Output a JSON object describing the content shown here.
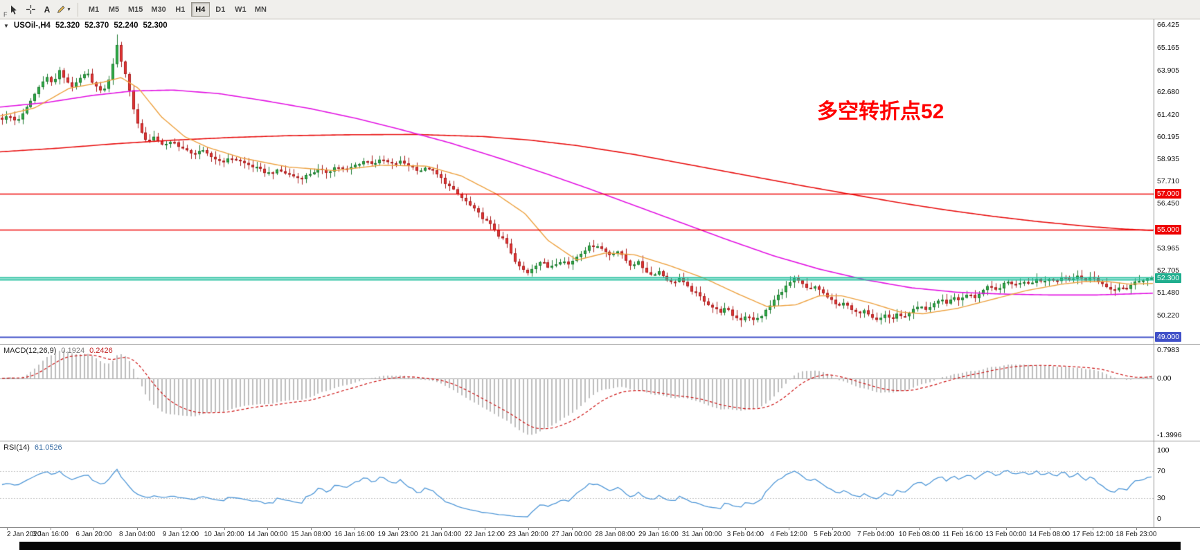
{
  "toolbar": {
    "text_tool_label": "A",
    "overflow_label": "F",
    "timeframes": [
      {
        "label": "M1",
        "active": false
      },
      {
        "label": "M5",
        "active": false
      },
      {
        "label": "M15",
        "active": false
      },
      {
        "label": "M30",
        "active": false
      },
      {
        "label": "H1",
        "active": false
      },
      {
        "label": "H4",
        "active": true
      },
      {
        "label": "D1",
        "active": false
      },
      {
        "label": "W1",
        "active": false
      },
      {
        "label": "MN",
        "active": false
      }
    ]
  },
  "chart_header": {
    "symbol_timeframe": "USOil-,H4",
    "open": "52.320",
    "high": "52.370",
    "low": "52.240",
    "close": "52.300"
  },
  "annotation": {
    "text": "多空转折点52",
    "color": "#ff0000"
  },
  "macd_panel": {
    "label": "MACD(12,26,9)",
    "value_main": "0.1924",
    "value_signal": "0.2426",
    "axis_labels": [
      "0.7983",
      "0.00",
      "-1.3996"
    ],
    "histogram_color": "#bdbdbd",
    "signal_color": "#cc1111",
    "zero_line_color": "#a8a8a8"
  },
  "rsi_panel": {
    "label": "RSI(14)",
    "value": "61.0526",
    "period": 14,
    "axis_labels": [
      {
        "v": 100,
        "t": "100"
      },
      {
        "v": 70,
        "t": "70"
      },
      {
        "v": 30,
        "t": "30"
      },
      {
        "v": 0,
        "t": "0"
      }
    ],
    "levels": [
      70,
      30
    ],
    "level_color": "#c0c0c0",
    "line_color": "#4f97d7",
    "range": [
      -12,
      113
    ]
  },
  "time_axis": {
    "labels": [
      "2 Jan 2020",
      "3 Jan 16:00",
      "6 Jan 20:00",
      "8 Jan 04:00",
      "9 Jan 12:00",
      "10 Jan 20:00",
      "14 Jan 00:00",
      "15 Jan 08:00",
      "16 Jan 16:00",
      "19 Jan 23:00",
      "21 Jan 04:00",
      "22 Jan 12:00",
      "23 Jan 20:00",
      "27 Jan 00:00",
      "28 Jan 08:00",
      "29 Jan 16:00",
      "31 Jan 00:00",
      "3 Feb 04:00",
      "4 Feb 12:00",
      "5 Feb 20:00",
      "7 Feb 04:00",
      "10 Feb 08:00",
      "11 Feb 16:00",
      "13 Feb 00:00",
      "14 Feb 08:00",
      "17 Feb 12:00",
      "18 Feb 23:00"
    ]
  },
  "bottom_bar": {
    "color": "#060606"
  },
  "chart_data": {
    "type": "candlestick",
    "symbol": "USOil-",
    "timeframe": "H4",
    "ohlc_display": {
      "open": 52.32,
      "high": 52.37,
      "low": 52.24,
      "close": 52.3
    },
    "num_candles": 281,
    "wiggle": 0.16,
    "price_range": [
      48.62,
      66.75
    ],
    "y_axis_ticks": [
      "66.425",
      "65.165",
      "63.905",
      "62.680",
      "61.420",
      "60.195",
      "58.935",
      "57.710",
      "56.450",
      "53.965",
      "52.705",
      "51.480",
      "50.220"
    ],
    "candle_colors": {
      "up_fill": "#2fae47",
      "up_border": "#1d7a30",
      "down_fill": "#e53535",
      "down_border": "#a81d1d"
    },
    "close_waypoints": [
      [
        0,
        61.2
      ],
      [
        0.006,
        61.35
      ],
      [
        0.012,
        61.05
      ],
      [
        0.018,
        61.45
      ],
      [
        0.026,
        62.3
      ],
      [
        0.032,
        62.95
      ],
      [
        0.038,
        63.6
      ],
      [
        0.044,
        63.15
      ],
      [
        0.05,
        63.85
      ],
      [
        0.056,
        63.3
      ],
      [
        0.062,
        62.95
      ],
      [
        0.068,
        63.45
      ],
      [
        0.074,
        63.75
      ],
      [
        0.08,
        63.15
      ],
      [
        0.086,
        62.7
      ],
      [
        0.092,
        63.1
      ],
      [
        0.096,
        64.2
      ],
      [
        0.1,
        65.25
      ],
      [
        0.104,
        64.35
      ],
      [
        0.108,
        63.55
      ],
      [
        0.112,
        62.4
      ],
      [
        0.116,
        61.25
      ],
      [
        0.121,
        60.45
      ],
      [
        0.127,
        59.9
      ],
      [
        0.133,
        60.15
      ],
      [
        0.141,
        59.7
      ],
      [
        0.149,
        59.9
      ],
      [
        0.157,
        59.55
      ],
      [
        0.165,
        59.2
      ],
      [
        0.173,
        59.45
      ],
      [
        0.181,
        59.1
      ],
      [
        0.191,
        58.8
      ],
      [
        0.201,
        59.0
      ],
      [
        0.211,
        58.7
      ],
      [
        0.221,
        58.45
      ],
      [
        0.231,
        58.15
      ],
      [
        0.241,
        58.3
      ],
      [
        0.251,
        58.05
      ],
      [
        0.259,
        57.85
      ],
      [
        0.267,
        58.1
      ],
      [
        0.275,
        58.35
      ],
      [
        0.283,
        58.2
      ],
      [
        0.291,
        58.55
      ],
      [
        0.299,
        58.3
      ],
      [
        0.307,
        58.6
      ],
      [
        0.315,
        58.85
      ],
      [
        0.323,
        58.7
      ],
      [
        0.331,
        58.9
      ],
      [
        0.339,
        58.65
      ],
      [
        0.347,
        58.8
      ],
      [
        0.355,
        58.55
      ],
      [
        0.363,
        58.3
      ],
      [
        0.371,
        58.45
      ],
      [
        0.379,
        58.05
      ],
      [
        0.387,
        57.55
      ],
      [
        0.395,
        57.05
      ],
      [
        0.403,
        56.6
      ],
      [
        0.411,
        56.1
      ],
      [
        0.419,
        55.6
      ],
      [
        0.427,
        55.15
      ],
      [
        0.433,
        54.6
      ],
      [
        0.439,
        54.25
      ],
      [
        0.445,
        53.3
      ],
      [
        0.451,
        52.85
      ],
      [
        0.457,
        52.6
      ],
      [
        0.463,
        53.0
      ],
      [
        0.469,
        53.25
      ],
      [
        0.475,
        52.9
      ],
      [
        0.481,
        53.1
      ],
      [
        0.487,
        53.3
      ],
      [
        0.493,
        53.05
      ],
      [
        0.499,
        53.45
      ],
      [
        0.505,
        53.8
      ],
      [
        0.511,
        54.05
      ],
      [
        0.517,
        54.15
      ],
      [
        0.523,
        53.85
      ],
      [
        0.529,
        53.6
      ],
      [
        0.535,
        53.85
      ],
      [
        0.541,
        53.4
      ],
      [
        0.547,
        53.0
      ],
      [
        0.553,
        53.2
      ],
      [
        0.559,
        52.75
      ],
      [
        0.565,
        52.45
      ],
      [
        0.571,
        52.7
      ],
      [
        0.577,
        52.3
      ],
      [
        0.583,
        52.0
      ],
      [
        0.589,
        52.3
      ],
      [
        0.595,
        51.85
      ],
      [
        0.601,
        51.55
      ],
      [
        0.608,
        51.2
      ],
      [
        0.616,
        50.75
      ],
      [
        0.624,
        50.4
      ],
      [
        0.63,
        50.6
      ],
      [
        0.636,
        50.2
      ],
      [
        0.642,
        49.95
      ],
      [
        0.648,
        50.25
      ],
      [
        0.654,
        49.9
      ],
      [
        0.66,
        50.15
      ],
      [
        0.666,
        50.6
      ],
      [
        0.672,
        51.1
      ],
      [
        0.678,
        51.55
      ],
      [
        0.684,
        51.95
      ],
      [
        0.69,
        52.25
      ],
      [
        0.696,
        51.95
      ],
      [
        0.702,
        51.6
      ],
      [
        0.708,
        51.85
      ],
      [
        0.714,
        51.45
      ],
      [
        0.72,
        51.1
      ],
      [
        0.726,
        50.75
      ],
      [
        0.732,
        50.95
      ],
      [
        0.738,
        50.55
      ],
      [
        0.744,
        50.3
      ],
      [
        0.75,
        50.55
      ],
      [
        0.756,
        50.2
      ],
      [
        0.762,
        49.95
      ],
      [
        0.768,
        50.25
      ],
      [
        0.774,
        50.0
      ],
      [
        0.78,
        50.3
      ],
      [
        0.786,
        50.1
      ],
      [
        0.792,
        50.45
      ],
      [
        0.798,
        50.7
      ],
      [
        0.804,
        50.5
      ],
      [
        0.81,
        50.85
      ],
      [
        0.816,
        51.1
      ],
      [
        0.822,
        50.9
      ],
      [
        0.828,
        51.25
      ],
      [
        0.834,
        51.05
      ],
      [
        0.84,
        51.4
      ],
      [
        0.846,
        51.2
      ],
      [
        0.852,
        51.55
      ],
      [
        0.858,
        51.8
      ],
      [
        0.864,
        51.6
      ],
      [
        0.87,
        51.9
      ],
      [
        0.876,
        52.1
      ],
      [
        0.882,
        51.9
      ],
      [
        0.888,
        52.15
      ],
      [
        0.894,
        52.0
      ],
      [
        0.9,
        52.25
      ],
      [
        0.906,
        52.1
      ],
      [
        0.912,
        52.3
      ],
      [
        0.918,
        52.15
      ],
      [
        0.924,
        52.35
      ],
      [
        0.93,
        52.2
      ],
      [
        0.936,
        52.4
      ],
      [
        0.942,
        52.2
      ],
      [
        0.948,
        52.35
      ],
      [
        0.954,
        52.1
      ],
      [
        0.96,
        51.85
      ],
      [
        0.966,
        51.6
      ],
      [
        0.972,
        51.85
      ],
      [
        0.978,
        51.7
      ],
      [
        0.984,
        52.0
      ],
      [
        0.99,
        52.2
      ],
      [
        1,
        52.3
      ]
    ],
    "moving_averages": [
      {
        "name": "slow-ma",
        "color": "#e81010",
        "width": 1.6,
        "waypoints": [
          [
            0,
            59.35
          ],
          [
            0.05,
            59.55
          ],
          [
            0.1,
            59.8
          ],
          [
            0.15,
            60.0
          ],
          [
            0.2,
            60.15
          ],
          [
            0.25,
            60.25
          ],
          [
            0.3,
            60.3
          ],
          [
            0.36,
            60.32
          ],
          [
            0.42,
            60.2
          ],
          [
            0.46,
            60.0
          ],
          [
            0.5,
            59.7
          ],
          [
            0.55,
            59.2
          ],
          [
            0.6,
            58.6
          ],
          [
            0.65,
            58.0
          ],
          [
            0.7,
            57.4
          ],
          [
            0.74,
            56.95
          ],
          [
            0.78,
            56.5
          ],
          [
            0.82,
            56.1
          ],
          [
            0.86,
            55.75
          ],
          [
            0.9,
            55.45
          ],
          [
            0.94,
            55.2
          ],
          [
            0.97,
            55.05
          ],
          [
            1,
            54.95
          ]
        ]
      },
      {
        "name": "medium-ma",
        "color": "#e214e2",
        "width": 1.6,
        "waypoints": [
          [
            0,
            61.85
          ],
          [
            0.04,
            62.1
          ],
          [
            0.08,
            62.5
          ],
          [
            0.115,
            62.75
          ],
          [
            0.15,
            62.8
          ],
          [
            0.19,
            62.6
          ],
          [
            0.23,
            62.2
          ],
          [
            0.27,
            61.75
          ],
          [
            0.31,
            61.2
          ],
          [
            0.35,
            60.55
          ],
          [
            0.39,
            59.85
          ],
          [
            0.43,
            59.05
          ],
          [
            0.47,
            58.2
          ],
          [
            0.51,
            57.3
          ],
          [
            0.55,
            56.35
          ],
          [
            0.59,
            55.4
          ],
          [
            0.63,
            54.45
          ],
          [
            0.67,
            53.55
          ],
          [
            0.71,
            52.8
          ],
          [
            0.75,
            52.2
          ],
          [
            0.79,
            51.75
          ],
          [
            0.83,
            51.5
          ],
          [
            0.87,
            51.4
          ],
          [
            0.91,
            51.35
          ],
          [
            0.95,
            51.35
          ],
          [
            1,
            51.45
          ]
        ]
      },
      {
        "name": "fast-ma",
        "color": "#eda13f",
        "width": 1.4,
        "waypoints": [
          [
            0,
            61.35
          ],
          [
            0.03,
            61.8
          ],
          [
            0.06,
            62.9
          ],
          [
            0.09,
            63.25
          ],
          [
            0.105,
            63.5
          ],
          [
            0.12,
            62.9
          ],
          [
            0.14,
            61.3
          ],
          [
            0.16,
            60.2
          ],
          [
            0.18,
            59.6
          ],
          [
            0.21,
            59.0
          ],
          [
            0.25,
            58.5
          ],
          [
            0.29,
            58.3
          ],
          [
            0.33,
            58.6
          ],
          [
            0.37,
            58.55
          ],
          [
            0.4,
            58.0
          ],
          [
            0.43,
            57.0
          ],
          [
            0.455,
            55.9
          ],
          [
            0.475,
            54.4
          ],
          [
            0.5,
            53.3
          ],
          [
            0.525,
            53.7
          ],
          [
            0.55,
            53.6
          ],
          [
            0.58,
            53.0
          ],
          [
            0.61,
            52.3
          ],
          [
            0.64,
            51.4
          ],
          [
            0.665,
            50.7
          ],
          [
            0.69,
            50.8
          ],
          [
            0.71,
            51.3
          ],
          [
            0.73,
            51.3
          ],
          [
            0.755,
            50.9
          ],
          [
            0.78,
            50.4
          ],
          [
            0.8,
            50.3
          ],
          [
            0.83,
            50.6
          ],
          [
            0.86,
            51.1
          ],
          [
            0.89,
            51.6
          ],
          [
            0.92,
            51.95
          ],
          [
            0.94,
            52.1
          ],
          [
            0.96,
            52.1
          ],
          [
            0.98,
            51.95
          ],
          [
            1,
            52.0
          ]
        ]
      }
    ],
    "horizontal_lines": [
      {
        "price": 57.0,
        "label": "57.000",
        "color": "#ee0000",
        "width": 1.6
      },
      {
        "price": 55.0,
        "label": "55.000",
        "color": "#ee0000",
        "width": 1.6
      },
      {
        "price": 52.35,
        "label": null,
        "color": "#28c0a0",
        "width": 2
      },
      {
        "price": 52.21,
        "label": null,
        "color": "#28c0a0",
        "width": 2
      },
      {
        "price": 49.0,
        "label": "49.000",
        "color": "#4050c8",
        "width": 2
      }
    ],
    "current_price_label": {
      "text": "52.300",
      "price": 52.3,
      "bg": "#1fae8e"
    }
  }
}
